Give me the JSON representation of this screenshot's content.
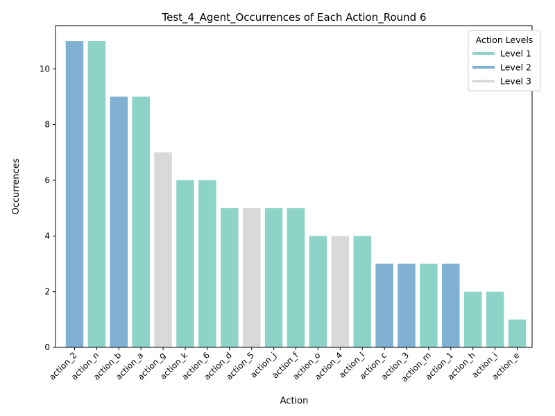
{
  "chart_data": {
    "type": "bar",
    "title": "Test_4_Agent_Occurrences of Each Action_Round 6",
    "xlabel": "Action",
    "ylabel": "Occurrences",
    "ylim": [
      0,
      11.55
    ],
    "yticks": [
      0,
      2,
      4,
      6,
      8,
      10
    ],
    "grid": false,
    "legend": {
      "title": "Action Levels",
      "placement": "top-right",
      "entries": [
        {
          "label": "Level 1",
          "level": 1
        },
        {
          "label": "Level 2",
          "level": 2
        },
        {
          "label": "Level 3",
          "level": 3
        }
      ]
    },
    "colors": {
      "1": "#8dd3c7",
      "2": "#80b1d3",
      "3": "#d9d9d9"
    },
    "categories": [
      "action_2",
      "action_n",
      "action_b",
      "action_a",
      "action_g",
      "action_k",
      "action_6",
      "action_d",
      "action_5",
      "action_j",
      "action_f",
      "action_o",
      "action_4",
      "action_l",
      "action_c",
      "action_3",
      "action_m",
      "action_1",
      "action_h",
      "action_i",
      "action_e"
    ],
    "values": [
      11,
      11,
      9,
      9,
      7,
      6,
      6,
      5,
      5,
      5,
      5,
      4,
      4,
      4,
      3,
      3,
      3,
      3,
      2,
      2,
      1
    ],
    "levels": [
      2,
      1,
      2,
      1,
      3,
      1,
      1,
      1,
      3,
      1,
      1,
      1,
      3,
      1,
      2,
      2,
      1,
      2,
      1,
      1,
      1
    ]
  }
}
